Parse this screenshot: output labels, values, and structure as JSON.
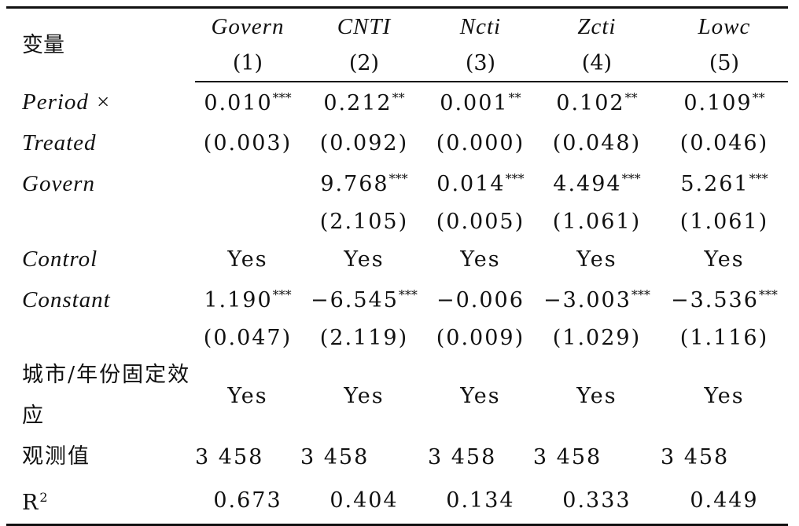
{
  "table": {
    "header": {
      "label": "变量",
      "columns": [
        "Govern",
        "CNTI",
        "Ncti",
        "Zcti",
        "Lowc"
      ],
      "numbers": [
        "(1)",
        "(2)",
        "(3)",
        "(4)",
        "(5)"
      ]
    },
    "rows": [
      {
        "label": "Period ×",
        "cells": [
          {
            "text": "0.010",
            "stars": "***"
          },
          {
            "text": "0.212",
            "stars": "**"
          },
          {
            "text": "0.001",
            "stars": "**"
          },
          {
            "text": "0.102",
            "stars": "**"
          },
          {
            "text": "0.109",
            "stars": "**"
          }
        ]
      },
      {
        "label": "Treated",
        "cells": [
          {
            "text": "(0.003)"
          },
          {
            "text": "(0.092)"
          },
          {
            "text": "(0.000)"
          },
          {
            "text": "(0.048)"
          },
          {
            "text": "(0.046)"
          }
        ]
      },
      {
        "label": "Govern",
        "cells": [
          null,
          {
            "text": "9.768",
            "stars": "***"
          },
          {
            "text": "0.014",
            "stars": "***"
          },
          {
            "text": "4.494",
            "stars": "***"
          },
          {
            "text": "5.261",
            "stars": "***"
          }
        ]
      },
      {
        "label": null,
        "cells": [
          null,
          {
            "text": "(2.105)"
          },
          {
            "text": "(0.005)"
          },
          {
            "text": "(1.061)"
          },
          {
            "text": "(1.061)"
          }
        ]
      },
      {
        "label": "Control",
        "cells": [
          {
            "text": "Yes"
          },
          {
            "text": "Yes"
          },
          {
            "text": "Yes"
          },
          {
            "text": "Yes"
          },
          {
            "text": "Yes"
          }
        ]
      },
      {
        "label": "Constant",
        "cells": [
          {
            "text": "1.190",
            "stars": "***"
          },
          {
            "text": "−6.545",
            "stars": "***"
          },
          {
            "text": "−0.006"
          },
          {
            "text": "−3.003",
            "stars": "***"
          },
          {
            "text": "−3.536",
            "stars": "***"
          }
        ]
      },
      {
        "label": null,
        "cells": [
          {
            "text": "(0.047)"
          },
          {
            "text": "(2.119)"
          },
          {
            "text": "(0.009)"
          },
          {
            "text": "(1.029)"
          },
          {
            "text": "(1.116)"
          }
        ]
      },
      {
        "label": "城市/年份固定效应",
        "cells": [
          {
            "text": "Yes"
          },
          {
            "text": "Yes"
          },
          {
            "text": "Yes"
          },
          {
            "text": "Yes"
          },
          {
            "text": "Yes"
          }
        ]
      },
      {
        "label": "观测值",
        "cells": [
          {
            "text": "3 458"
          },
          {
            "text": "3 458"
          },
          {
            "text": "3 458"
          },
          {
            "text": "3 458"
          },
          {
            "text": "3 458"
          }
        ]
      },
      {
        "label": {
          "text": "R",
          "sup": "2"
        },
        "cells": [
          {
            "text": "0.673"
          },
          {
            "text": "0.404"
          },
          {
            "text": "0.134"
          },
          {
            "text": "0.333"
          },
          {
            "text": "0.449"
          }
        ]
      }
    ]
  }
}
